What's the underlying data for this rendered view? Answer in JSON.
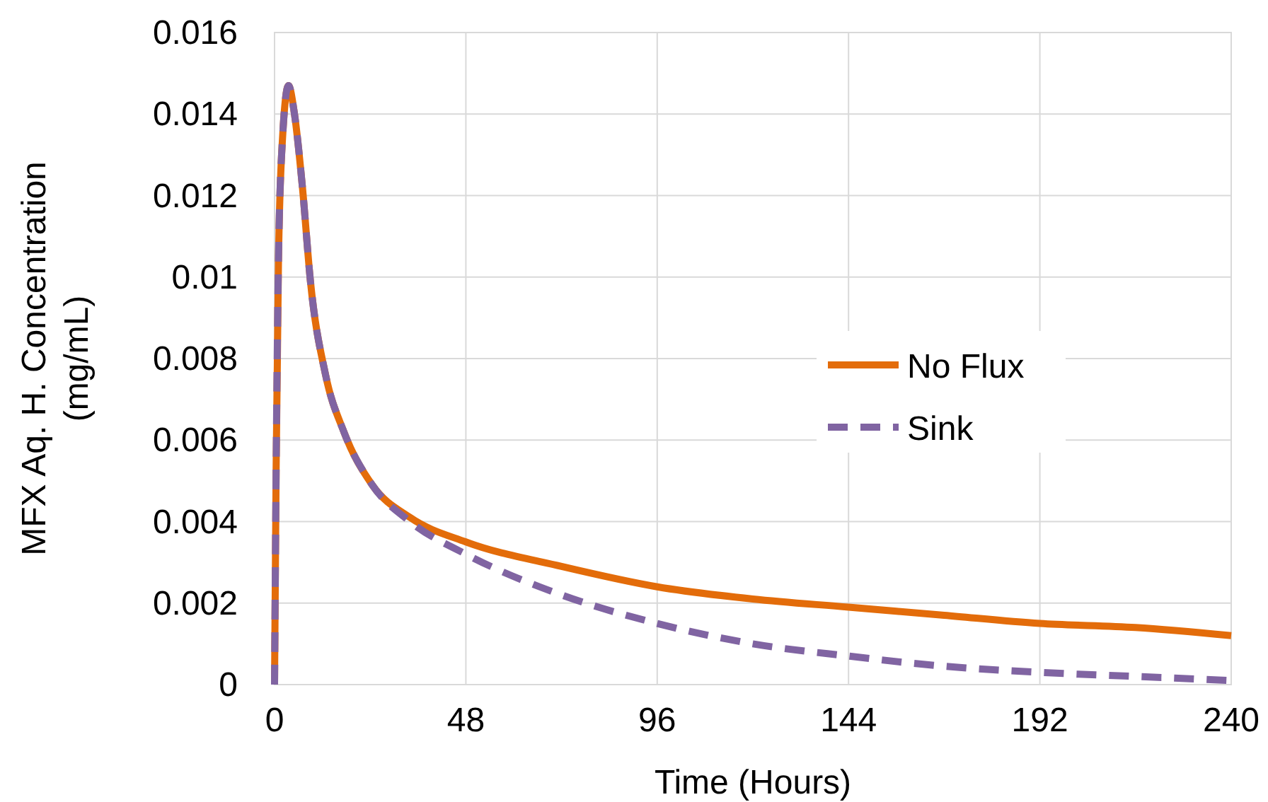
{
  "chart_data": {
    "type": "line",
    "xlabel": "Time (Hours)",
    "ylabel": "MFX Aq. H. Concentration (mg/mL)",
    "xlim": [
      0,
      240
    ],
    "xticks": [
      0,
      48,
      96,
      144,
      192,
      240
    ],
    "ylim": [
      0,
      0.016
    ],
    "yticks": [
      0,
      0.002,
      0.004,
      0.006,
      0.008,
      0.01,
      0.012,
      0.014,
      0.016
    ],
    "grid": true,
    "legend": "right",
    "series": [
      {
        "name": "No Flux",
        "color": "#e36c0a",
        "line_style": "solid",
        "x": [
          0,
          0.4,
          1,
          2,
          3.5,
          5,
          7,
          9,
          12.8,
          17.4,
          24.5,
          34,
          48,
          72,
          96,
          120,
          144,
          168,
          192,
          216,
          240
        ],
        "values": [
          0,
          0.0053,
          0.0105,
          0.0134,
          0.0147,
          0.014,
          0.0122,
          0.0099,
          0.0076,
          0.0062,
          0.0049,
          0.0041,
          0.0035,
          0.0029,
          0.0024,
          0.0021,
          0.0019,
          0.0017,
          0.0015,
          0.0014,
          0.0012
        ]
      },
      {
        "name": "Sink",
        "color": "#8064a2",
        "line_style": "dashed",
        "x": [
          0,
          0.4,
          1,
          2,
          3.5,
          5,
          7,
          9,
          12.8,
          17.4,
          24.5,
          34,
          48,
          72,
          96,
          120,
          144,
          168,
          192,
          216,
          240
        ],
        "values": [
          0,
          0.0053,
          0.0105,
          0.0134,
          0.0147,
          0.014,
          0.0122,
          0.0099,
          0.0076,
          0.0062,
          0.0049,
          0.004,
          0.0032,
          0.0022,
          0.0015,
          0.001,
          0.0007,
          0.00045,
          0.0003,
          0.0002,
          0.0001
        ]
      }
    ]
  }
}
